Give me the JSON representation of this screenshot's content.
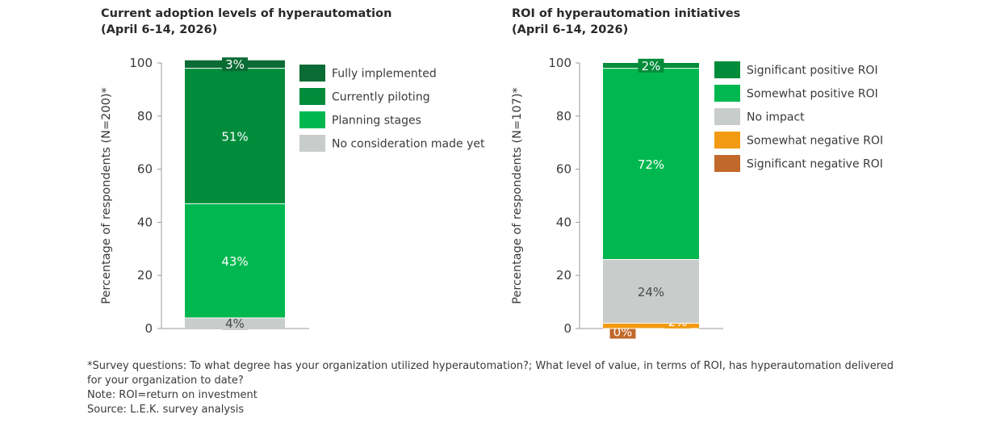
{
  "chart_data": [
    {
      "type": "bar",
      "stacked": true,
      "title": "Current adoption levels of hyperautomation",
      "subtitle": "(April 6-14, 2026)",
      "xlabel": "",
      "ylabel": "Percentage of respondents (N=200)*",
      "ylim": [
        0,
        100
      ],
      "yticks": [
        0,
        20,
        40,
        60,
        80,
        100
      ],
      "legend_position": "right",
      "categories": [
        ""
      ],
      "series": [
        {
          "name": "No consideration made yet",
          "values": [
            4
          ],
          "label": "4%",
          "color": "#c8cccb"
        },
        {
          "name": "Planning stages",
          "values": [
            43
          ],
          "label": "43%",
          "color": "#00b84f"
        },
        {
          "name": "Currently piloting",
          "values": [
            51
          ],
          "label": "51%",
          "color": "#008c3a"
        },
        {
          "name": "Fully implemented",
          "values": [
            3
          ],
          "label": "3%",
          "color": "#0b6b34"
        }
      ],
      "legend_order": [
        "Fully implemented",
        "Currently piloting",
        "Planning stages",
        "No consideration made yet"
      ]
    },
    {
      "type": "bar",
      "stacked": true,
      "title": "ROI of hyperautomation initiatives",
      "subtitle": "(April 6-14, 2026)",
      "xlabel": "",
      "ylabel": "Percentage of respondents (N=107)*",
      "ylim": [
        0,
        100
      ],
      "yticks": [
        0,
        20,
        40,
        60,
        80,
        100
      ],
      "legend_position": "right",
      "categories": [
        ""
      ],
      "series": [
        {
          "name": "Significant negative ROI",
          "values": [
            0
          ],
          "label": "0%",
          "color": "#c0692a"
        },
        {
          "name": "Somewhat negative ROI",
          "values": [
            2
          ],
          "label": "2%",
          "color": "#f29b12"
        },
        {
          "name": "No impact",
          "values": [
            24
          ],
          "label": "24%",
          "color": "#c8cccb"
        },
        {
          "name": "Somewhat positive ROI",
          "values": [
            72
          ],
          "label": "72%",
          "color": "#00b84f"
        },
        {
          "name": "Significant positive ROI",
          "values": [
            2
          ],
          "label": "2%",
          "color": "#008c3a"
        }
      ],
      "legend_order": [
        "Significant positive ROI",
        "Somewhat positive ROI",
        "No impact",
        "Somewhat negative ROI",
        "Significant negative ROI"
      ]
    }
  ],
  "footnote": {
    "line1": "*Survey questions: To what degree has your organization utilized hyperautomation?; What level of value, in terms of ROI, has hyperautomation delivered for your organization to date?",
    "line2": "Note: ROI=return on investment",
    "line3": "Source: L.E.K. survey analysis"
  }
}
